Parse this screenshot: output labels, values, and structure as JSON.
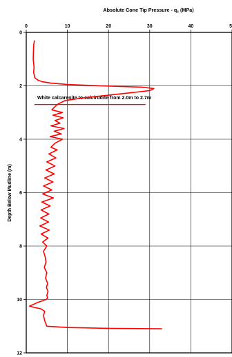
{
  "chart_data": {
    "type": "line",
    "title": "Absolute Cone Tip Pressure - q",
    "title_subscript": "c",
    "title_units": " (MPa)",
    "xlabel": "Absolute Cone Tip Pressure - qc (MPa)",
    "ylabel": "Depth Below Mudline (m)",
    "xlim": [
      0,
      50
    ],
    "ylim": [
      0,
      12
    ],
    "y_inverted": true,
    "x_axis_position": "top",
    "x_ticks": [
      "0",
      "10",
      "20",
      "30",
      "40",
      "50"
    ],
    "y_ticks": [
      "0",
      "2",
      "4",
      "6",
      "8",
      "10",
      "12"
    ],
    "grid": true,
    "annotation": {
      "text": "White calcarenite to calcirudite from 2.0m to 2.7m",
      "depth": 2.4,
      "underline_from_x": 2,
      "underline_to_x": 29,
      "underline_depth": 2.7
    },
    "series": [
      {
        "color": "#ff0000",
        "x": [
          2.0,
          1.8,
          1.7,
          1.9,
          1.8,
          2.1,
          2.5,
          3.0,
          4.0,
          6.0,
          10.0,
          18.0,
          28.0,
          31.0,
          30.0,
          26.0,
          20.0,
          14.0,
          9.5,
          7.5,
          6.2,
          8.8,
          6.5,
          9.0,
          7.0,
          8.2,
          6.0,
          9.2,
          6.8,
          8.5,
          5.8,
          8.8,
          7.0,
          6.0,
          7.5,
          5.5,
          7.2,
          5.0,
          7.0,
          4.8,
          6.8,
          4.5,
          6.5,
          4.2,
          6.2,
          4.0,
          6.6,
          3.8,
          5.8,
          3.6,
          5.5,
          3.5,
          5.4,
          3.3,
          5.6,
          3.6,
          5.3,
          4.0,
          5.0,
          4.2,
          4.6,
          4.8,
          4.4,
          5.0,
          4.7,
          5.2,
          4.9,
          5.3,
          5.0,
          5.2,
          4.8,
          4.0,
          3.0,
          1.5,
          0.8,
          2.0,
          3.6,
          4.5,
          4.2,
          4.5,
          5.0,
          10.0,
          20.0,
          33.0
        ],
        "y": [
          0.3,
          0.5,
          1.0,
          1.3,
          1.5,
          1.7,
          1.75,
          1.8,
          1.85,
          1.9,
          1.95,
          2.0,
          2.05,
          2.1,
          2.18,
          2.25,
          2.35,
          2.45,
          2.55,
          2.7,
          2.9,
          3.0,
          3.1,
          3.2,
          3.3,
          3.4,
          3.5,
          3.6,
          3.7,
          3.8,
          3.9,
          4.0,
          4.15,
          4.3,
          4.4,
          4.55,
          4.7,
          4.85,
          5.0,
          5.15,
          5.3,
          5.45,
          5.6,
          5.75,
          5.9,
          6.05,
          6.2,
          6.35,
          6.5,
          6.65,
          6.8,
          6.95,
          7.1,
          7.25,
          7.4,
          7.55,
          7.7,
          7.85,
          8.0,
          8.2,
          8.4,
          8.6,
          8.8,
          9.0,
          9.2,
          9.4,
          9.55,
          9.7,
          9.85,
          9.95,
          10.0,
          10.05,
          10.1,
          10.2,
          10.25,
          10.3,
          10.35,
          10.45,
          10.6,
          10.8,
          11.0,
          11.05,
          11.08,
          11.1
        ]
      }
    ]
  }
}
